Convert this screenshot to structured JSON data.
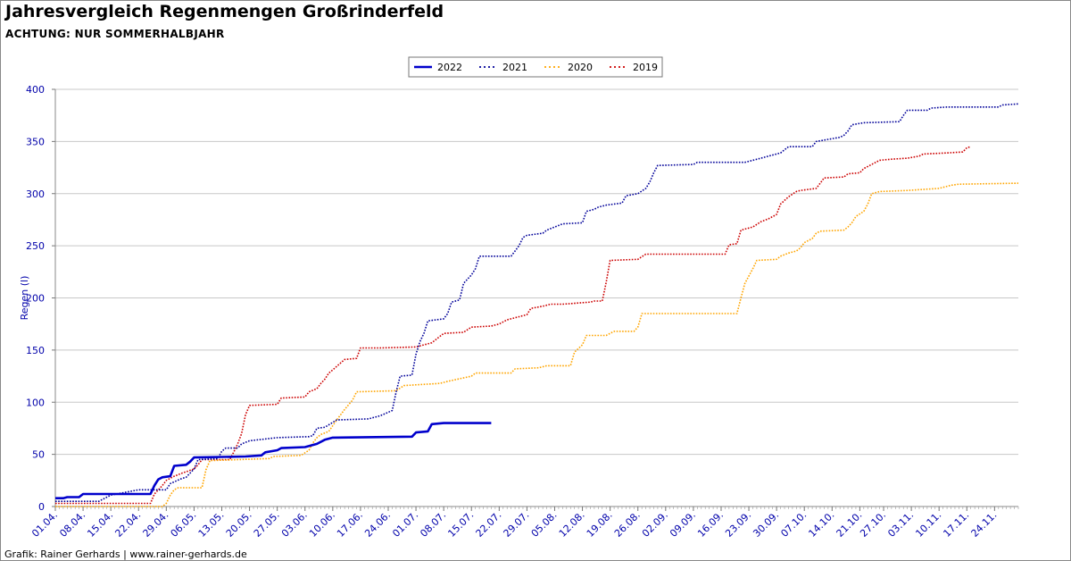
{
  "title": "Jahresvergleich Regenmengen Großrinderfeld",
  "subtitle": "ACHTUNG: NUR SOMMERHALBJAHR",
  "footer": "Grafik: Rainer Gerhards | www.rainer-gerhards.de",
  "chart_data": {
    "type": "line",
    "ylabel": "Regen (l)",
    "ylim": [
      0,
      400
    ],
    "yticks": [
      0,
      50,
      100,
      150,
      200,
      250,
      300,
      350,
      400
    ],
    "x_start": "04-01",
    "x_end": "11-30",
    "x_tick_labels": [
      "01.04.",
      "08.04.",
      "15.04.",
      "22.04.",
      "29.04.",
      "06.05.",
      "13.05.",
      "20.05.",
      "27.05.",
      "03.06.",
      "10.06.",
      "17.06.",
      "24.06.",
      "01.07.",
      "08.07.",
      "15.07.",
      "22.07.",
      "29.07.",
      "05.08.",
      "12.08.",
      "19.08.",
      "26.08.",
      "02.09.",
      "09.09.",
      "16.09.",
      "23.09.",
      "30.09.",
      "07.10.",
      "14.10.",
      "21.10.",
      "27.10.",
      "03.11.",
      "10.11.",
      "17.11.",
      "24.11."
    ],
    "grid": "horizontal",
    "legend_position": "top-center",
    "series": [
      {
        "name": "2022",
        "color": "#0000cc",
        "style": "solid",
        "points": [
          [
            "04-01",
            8
          ],
          [
            "04-03",
            8
          ],
          [
            "04-04",
            9
          ],
          [
            "04-07",
            9
          ],
          [
            "04-08",
            12
          ],
          [
            "04-25",
            12
          ],
          [
            "04-26",
            20
          ],
          [
            "04-27",
            26
          ],
          [
            "04-28",
            28
          ],
          [
            "04-30",
            29
          ],
          [
            "05-01",
            39
          ],
          [
            "05-04",
            40
          ],
          [
            "05-05",
            43
          ],
          [
            "05-06",
            47
          ],
          [
            "05-19",
            48
          ],
          [
            "05-23",
            49
          ],
          [
            "05-24",
            52
          ],
          [
            "05-27",
            54
          ],
          [
            "05-28",
            56
          ],
          [
            "06-03",
            57
          ],
          [
            "06-06",
            60
          ],
          [
            "06-08",
            64
          ],
          [
            "06-10",
            66
          ],
          [
            "06-30",
            67
          ],
          [
            "07-01",
            71
          ],
          [
            "07-04",
            72
          ],
          [
            "07-05",
            79
          ],
          [
            "07-08",
            80
          ],
          [
            "07-20",
            80
          ]
        ]
      },
      {
        "name": "2021",
        "color": "#000099",
        "style": "dotted",
        "points": [
          [
            "04-01",
            5
          ],
          [
            "04-12",
            5
          ],
          [
            "04-15",
            11
          ],
          [
            "04-22",
            16
          ],
          [
            "04-29",
            16
          ],
          [
            "04-30",
            22
          ],
          [
            "05-03",
            27
          ],
          [
            "05-04",
            28
          ],
          [
            "05-05",
            32
          ],
          [
            "05-06",
            36
          ],
          [
            "05-07",
            45
          ],
          [
            "05-12",
            46
          ],
          [
            "05-13",
            53
          ],
          [
            "05-14",
            56
          ],
          [
            "05-17",
            56
          ],
          [
            "05-18",
            60
          ],
          [
            "05-20",
            63
          ],
          [
            "05-27",
            66
          ],
          [
            "06-04",
            67
          ],
          [
            "06-05",
            68
          ],
          [
            "06-06",
            75
          ],
          [
            "06-08",
            76
          ],
          [
            "06-11",
            83
          ],
          [
            "06-19",
            84
          ],
          [
            "06-22",
            87
          ],
          [
            "06-25",
            92
          ],
          [
            "06-26",
            110
          ],
          [
            "06-27",
            125
          ],
          [
            "06-30",
            126
          ],
          [
            "07-01",
            146
          ],
          [
            "07-02",
            158
          ],
          [
            "07-03",
            166
          ],
          [
            "07-04",
            178
          ],
          [
            "07-08",
            180
          ],
          [
            "07-09",
            185
          ],
          [
            "07-10",
            196
          ],
          [
            "07-12",
            198
          ],
          [
            "07-13",
            214
          ],
          [
            "07-15",
            222
          ],
          [
            "07-16",
            228
          ],
          [
            "07-17",
            240
          ],
          [
            "07-25",
            240
          ],
          [
            "07-26",
            245
          ],
          [
            "07-27",
            250
          ],
          [
            "07-28",
            258
          ],
          [
            "07-29",
            260
          ],
          [
            "08-02",
            262
          ],
          [
            "08-03",
            265
          ],
          [
            "08-05",
            268
          ],
          [
            "08-07",
            271
          ],
          [
            "08-12",
            272
          ],
          [
            "08-13",
            283
          ],
          [
            "08-15",
            285
          ],
          [
            "08-16",
            287
          ],
          [
            "08-18",
            289
          ],
          [
            "08-22",
            291
          ],
          [
            "08-23",
            298
          ],
          [
            "08-26",
            300
          ],
          [
            "08-28",
            305
          ],
          [
            "08-29",
            311
          ],
          [
            "08-30",
            320
          ],
          [
            "08-31",
            327
          ],
          [
            "09-09",
            328
          ],
          [
            "09-10",
            330
          ],
          [
            "09-22",
            330
          ],
          [
            "09-23",
            331
          ],
          [
            "09-26",
            334
          ],
          [
            "09-28",
            336
          ],
          [
            "10-01",
            339
          ],
          [
            "10-03",
            345
          ],
          [
            "10-09",
            345
          ],
          [
            "10-10",
            350
          ],
          [
            "10-13",
            352
          ],
          [
            "10-16",
            354
          ],
          [
            "10-17",
            356
          ],
          [
            "10-18",
            360
          ],
          [
            "10-19",
            366
          ],
          [
            "10-22",
            368
          ],
          [
            "10-31",
            369
          ],
          [
            "11-01",
            375
          ],
          [
            "11-02",
            380
          ],
          [
            "11-07",
            380
          ],
          [
            "11-08",
            382
          ],
          [
            "11-12",
            383
          ],
          [
            "11-25",
            383
          ],
          [
            "11-26",
            385
          ],
          [
            "11-30",
            386
          ]
        ]
      },
      {
        "name": "2020",
        "color": "#ffa500",
        "style": "dotted",
        "points": [
          [
            "04-01",
            0
          ],
          [
            "04-28",
            0
          ],
          [
            "04-29",
            3
          ],
          [
            "04-30",
            11
          ],
          [
            "05-01",
            16
          ],
          [
            "05-02",
            18
          ],
          [
            "05-08",
            18
          ],
          [
            "05-09",
            35
          ],
          [
            "05-10",
            44
          ],
          [
            "05-25",
            46
          ],
          [
            "05-26",
            48
          ],
          [
            "06-02",
            49
          ],
          [
            "06-04",
            54
          ],
          [
            "06-05",
            61
          ],
          [
            "06-06",
            66
          ],
          [
            "06-07",
            69
          ],
          [
            "06-09",
            72
          ],
          [
            "06-11",
            83
          ],
          [
            "06-13",
            93
          ],
          [
            "06-15",
            102
          ],
          [
            "06-16",
            110
          ],
          [
            "06-26",
            111
          ],
          [
            "06-28",
            116
          ],
          [
            "07-07",
            118
          ],
          [
            "07-09",
            120
          ],
          [
            "07-15",
            125
          ],
          [
            "07-16",
            128
          ],
          [
            "07-25",
            128
          ],
          [
            "07-26",
            132
          ],
          [
            "08-01",
            133
          ],
          [
            "08-03",
            135
          ],
          [
            "08-09",
            135
          ],
          [
            "08-10",
            148
          ],
          [
            "08-12",
            155
          ],
          [
            "08-13",
            164
          ],
          [
            "08-18",
            164
          ],
          [
            "08-19",
            166
          ],
          [
            "08-20",
            168
          ],
          [
            "08-25",
            168
          ],
          [
            "08-26",
            172
          ],
          [
            "08-27",
            185
          ],
          [
            "09-20",
            185
          ],
          [
            "09-21",
            200
          ],
          [
            "09-22",
            214
          ],
          [
            "09-24",
            228
          ],
          [
            "09-25",
            236
          ],
          [
            "09-30",
            237
          ],
          [
            "10-01",
            240
          ],
          [
            "10-03",
            243
          ],
          [
            "10-05",
            245
          ],
          [
            "10-06",
            248
          ],
          [
            "10-07",
            253
          ],
          [
            "10-09",
            257
          ],
          [
            "10-10",
            262
          ],
          [
            "10-11",
            264
          ],
          [
            "10-17",
            265
          ],
          [
            "10-18",
            268
          ],
          [
            "10-19",
            272
          ],
          [
            "10-20",
            278
          ],
          [
            "10-22",
            283
          ],
          [
            "10-23",
            290
          ],
          [
            "10-24",
            300
          ],
          [
            "10-26",
            302
          ],
          [
            "11-02",
            303
          ],
          [
            "11-10",
            305
          ],
          [
            "11-13",
            308
          ],
          [
            "11-15",
            309
          ],
          [
            "11-30",
            310
          ]
        ]
      },
      {
        "name": "2019",
        "color": "#cc0000",
        "style": "dotted",
        "points": [
          [
            "04-01",
            3
          ],
          [
            "04-25",
            3
          ],
          [
            "04-26",
            12
          ],
          [
            "04-28",
            20
          ],
          [
            "04-29",
            25
          ],
          [
            "05-01",
            29
          ],
          [
            "05-03",
            32
          ],
          [
            "05-06",
            36
          ],
          [
            "05-07",
            40
          ],
          [
            "05-08",
            45
          ],
          [
            "05-15",
            45
          ],
          [
            "05-16",
            52
          ],
          [
            "05-17",
            60
          ],
          [
            "05-18",
            70
          ],
          [
            "05-19",
            88
          ],
          [
            "05-20",
            97
          ],
          [
            "05-27",
            98
          ],
          [
            "05-28",
            104
          ],
          [
            "06-03",
            105
          ],
          [
            "06-04",
            110
          ],
          [
            "06-06",
            113
          ],
          [
            "06-07",
            118
          ],
          [
            "06-08",
            122
          ],
          [
            "06-09",
            128
          ],
          [
            "06-10",
            131
          ],
          [
            "06-13",
            141
          ],
          [
            "06-16",
            142
          ],
          [
            "06-17",
            152
          ],
          [
            "06-22",
            152
          ],
          [
            "07-01",
            153
          ],
          [
            "07-05",
            157
          ],
          [
            "07-08",
            166
          ],
          [
            "07-13",
            167
          ],
          [
            "07-15",
            172
          ],
          [
            "07-20",
            173
          ],
          [
            "07-22",
            175
          ],
          [
            "07-24",
            179
          ],
          [
            "07-26",
            181
          ],
          [
            "07-29",
            184
          ],
          [
            "07-30",
            190
          ],
          [
            "08-02",
            192
          ],
          [
            "08-04",
            194
          ],
          [
            "08-07",
            194
          ],
          [
            "08-14",
            196
          ],
          [
            "08-15",
            197
          ],
          [
            "08-17",
            197
          ],
          [
            "08-18",
            215
          ],
          [
            "08-19",
            236
          ],
          [
            "08-26",
            237
          ],
          [
            "08-28",
            242
          ],
          [
            "09-17",
            242
          ],
          [
            "09-18",
            251
          ],
          [
            "09-20",
            252
          ],
          [
            "09-21",
            265
          ],
          [
            "09-24",
            268
          ],
          [
            "09-26",
            273
          ],
          [
            "09-28",
            276
          ],
          [
            "09-30",
            280
          ],
          [
            "10-01",
            290
          ],
          [
            "10-03",
            297
          ],
          [
            "10-05",
            302
          ],
          [
            "10-06",
            303
          ],
          [
            "10-10",
            305
          ],
          [
            "10-11",
            310
          ],
          [
            "10-12",
            315
          ],
          [
            "10-17",
            316
          ],
          [
            "10-18",
            319
          ],
          [
            "10-21",
            320
          ],
          [
            "10-22",
            324
          ],
          [
            "10-24",
            328
          ],
          [
            "10-26",
            332
          ],
          [
            "10-29",
            333
          ],
          [
            "11-02",
            334
          ],
          [
            "11-05",
            336
          ],
          [
            "11-06",
            338
          ],
          [
            "11-12",
            339
          ],
          [
            "11-16",
            340
          ],
          [
            "11-17",
            344
          ],
          [
            "11-18",
            345
          ]
        ]
      }
    ]
  }
}
